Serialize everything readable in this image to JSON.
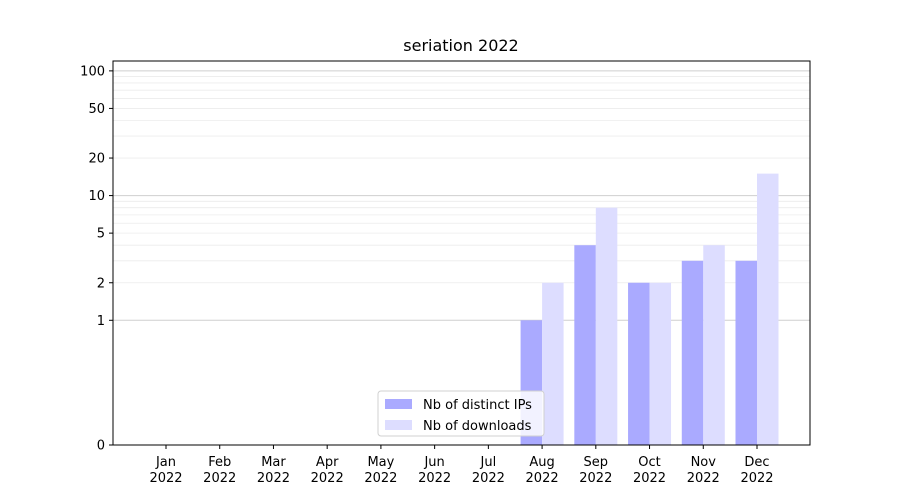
{
  "chart_data": {
    "type": "bar",
    "title": "seriation 2022",
    "xlabel": "",
    "ylabel": "",
    "categories": [
      [
        "Jan",
        "2022"
      ],
      [
        "Feb",
        "2022"
      ],
      [
        "Mar",
        "2022"
      ],
      [
        "Apr",
        "2022"
      ],
      [
        "May",
        "2022"
      ],
      [
        "Jun",
        "2022"
      ],
      [
        "Jul",
        "2022"
      ],
      [
        "Aug",
        "2022"
      ],
      [
        "Sep",
        "2022"
      ],
      [
        "Oct",
        "2022"
      ],
      [
        "Nov",
        "2022"
      ],
      [
        "Dec",
        "2022"
      ]
    ],
    "series": [
      {
        "name": "Nb of distinct IPs",
        "color": "#aaaaff",
        "values": [
          0,
          0,
          0,
          0,
          0,
          0,
          0,
          1,
          4,
          2,
          3,
          3
        ]
      },
      {
        "name": "Nb of downloads",
        "color": "#ddddff",
        "values": [
          0,
          0,
          0,
          0,
          0,
          0,
          0,
          2,
          8,
          2,
          4,
          15
        ]
      }
    ],
    "y_scale": "symlog",
    "ylim": [
      0,
      120
    ],
    "yticks": [
      0,
      1,
      2,
      5,
      10,
      20,
      50,
      100
    ],
    "grid": true,
    "legend_position": "bottom-center"
  }
}
